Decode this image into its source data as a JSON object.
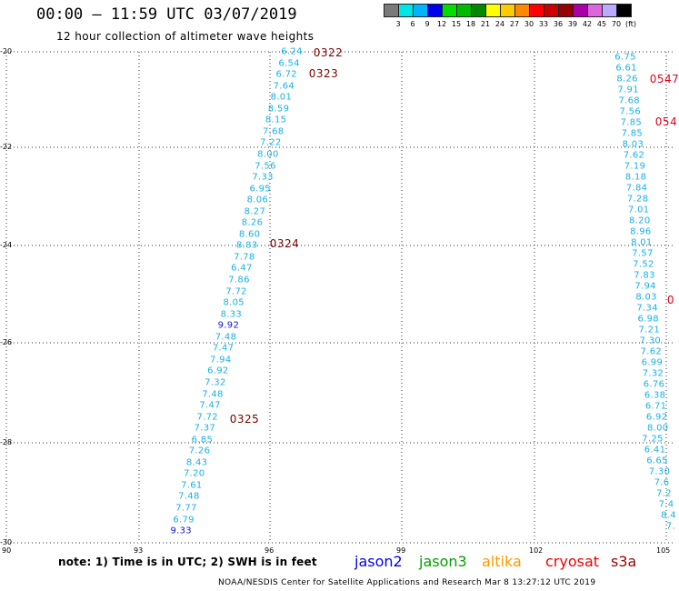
{
  "header": {
    "title": "00:00 — 11:59 UTC 03/07/2019",
    "subtitle": "12 hour collection of altimeter wave heights"
  },
  "legend": {
    "colors": [
      "#7a7a7a",
      "#00e5e5",
      "#00b4ff",
      "#0000ee",
      "#00dd00",
      "#00bb00",
      "#008800",
      "#ffff00",
      "#ffcc00",
      "#ff8800",
      "#ff0000",
      "#cc0000",
      "#990000",
      "#aa00aa",
      "#dd66dd",
      "#bbaaff",
      "#000000"
    ],
    "labels": [
      "3",
      "6",
      "9",
      "12",
      "15",
      "18",
      "21",
      "24",
      "27",
      "30",
      "33",
      "36",
      "39",
      "42",
      "45",
      "70",
      "(ft)"
    ]
  },
  "axes": {
    "y_labels": [
      "-20",
      "-22",
      "-24",
      "-26",
      "-28",
      "-30"
    ],
    "x_labels": [
      "90",
      "93",
      "96",
      "99",
      "102",
      "105"
    ]
  },
  "track_a": {
    "values": [
      "6.24",
      "6.54",
      "6.72",
      "7.64",
      "8.01",
      "8.59",
      "8.15",
      "7.68",
      "7.22",
      "8.00",
      "7.56",
      "7.33",
      "6.95",
      "8.06",
      "8.27",
      "8.26",
      "8.60",
      "8.83",
      "7.78",
      "6.47",
      "7.86",
      "7.72",
      "8.05",
      "8.33",
      "9.92",
      "7.48",
      "7.47",
      "7.94",
      "6.92",
      "7.32",
      "7.48",
      "7.47",
      "7.72",
      "7.37",
      "6.85",
      "7.26",
      "8.43",
      "7.20",
      "7.61",
      "7.48",
      "7.77",
      "6.79",
      "9.33"
    ],
    "jason2_indices": [
      24,
      42
    ]
  },
  "track_b": {
    "values": [
      "6.75",
      "6.61",
      "8.26",
      "7.91",
      "7.68",
      "7.56",
      "7.85",
      "7.85",
      "8.03",
      "7.62",
      "7.19",
      "8.18",
      "7.84",
      "7.28",
      "7.01",
      "8.20",
      "8.96",
      "8.01",
      "7.57",
      "7.52",
      "7.83",
      "7.94",
      "8.03",
      "7.34",
      "6.98",
      "7.21",
      "7.30",
      "7.62",
      "6.99",
      "7.32",
      "6.76",
      "6.38",
      "6.71",
      "6.92",
      "8.00",
      "7.25",
      "6.41",
      "6.65",
      "7.30",
      "7.6",
      "7.2",
      "7.4",
      "8.4",
      "7."
    ]
  },
  "time_labels": [
    {
      "text": "0322",
      "color": "dark"
    },
    {
      "text": "0323",
      "color": "dark"
    },
    {
      "text": "0324",
      "color": "dark"
    },
    {
      "text": "0325",
      "color": "dark"
    },
    {
      "text": "0547",
      "color": "red"
    },
    {
      "text": "054",
      "color": "red"
    },
    {
      "text": "0",
      "color": "red"
    }
  ],
  "note": "note:  1) Time is in UTC;  2) SWH is in feet",
  "satellites": [
    {
      "name": "jason2",
      "color": "#0000ee"
    },
    {
      "name": "jason3",
      "color": "#00a000"
    },
    {
      "name": "altika",
      "color": "#ff9900"
    },
    {
      "name": "cryosat",
      "color": "#ee0000"
    },
    {
      "name": "s3a",
      "color": "#990000"
    }
  ],
  "footer": "NOAA/NESDIS Center for Satellite Applications and Research     Mar  8 13:27:12 UTC 2019"
}
